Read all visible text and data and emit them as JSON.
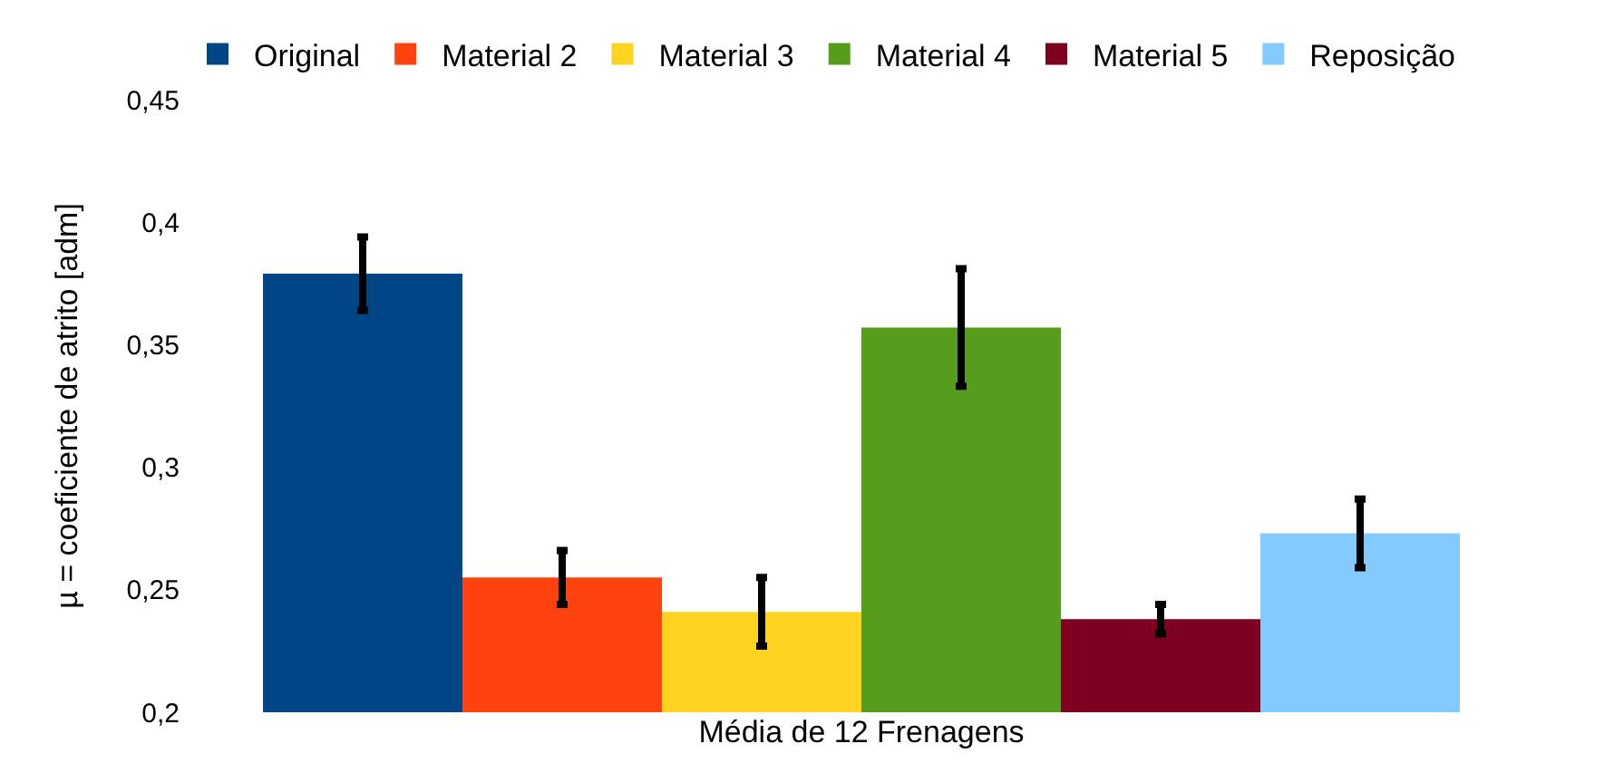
{
  "chart_data": {
    "type": "bar",
    "ylabel": "µ = coeficiente de atrito [adm]",
    "xlabel": "Média de 12 Frenagens",
    "categories": [
      null
    ],
    "series": [
      {
        "name": "Original",
        "color": "#004586",
        "values": [
          0.379
        ],
        "errors": [
          0.015
        ]
      },
      {
        "name": "Material 2",
        "color": "#ff420e",
        "values": [
          0.255
        ],
        "errors": [
          0.011
        ]
      },
      {
        "name": "Material 3",
        "color": "#ffd320",
        "values": [
          0.241
        ],
        "errors": [
          0.014
        ]
      },
      {
        "name": "Material 4",
        "color": "#579d1c",
        "values": [
          0.357
        ],
        "errors": [
          0.024
        ]
      },
      {
        "name": "Material 5",
        "color": "#7e0021",
        "values": [
          0.238
        ],
        "errors": [
          0.006
        ]
      },
      {
        "name": "Reposição",
        "color": "#83caff",
        "values": [
          0.273
        ],
        "errors": [
          0.014
        ]
      }
    ],
    "ylim": [
      0.2,
      0.45
    ],
    "yticks": [
      {
        "value": 0.2,
        "label": "0,2"
      },
      {
        "value": 0.25,
        "label": "0,25"
      },
      {
        "value": 0.3,
        "label": "0,3"
      },
      {
        "value": 0.35,
        "label": "0,35"
      },
      {
        "value": 0.4,
        "label": "0,4"
      },
      {
        "value": 0.45,
        "label": "0,45"
      }
    ],
    "grid": false,
    "legend": "top"
  }
}
